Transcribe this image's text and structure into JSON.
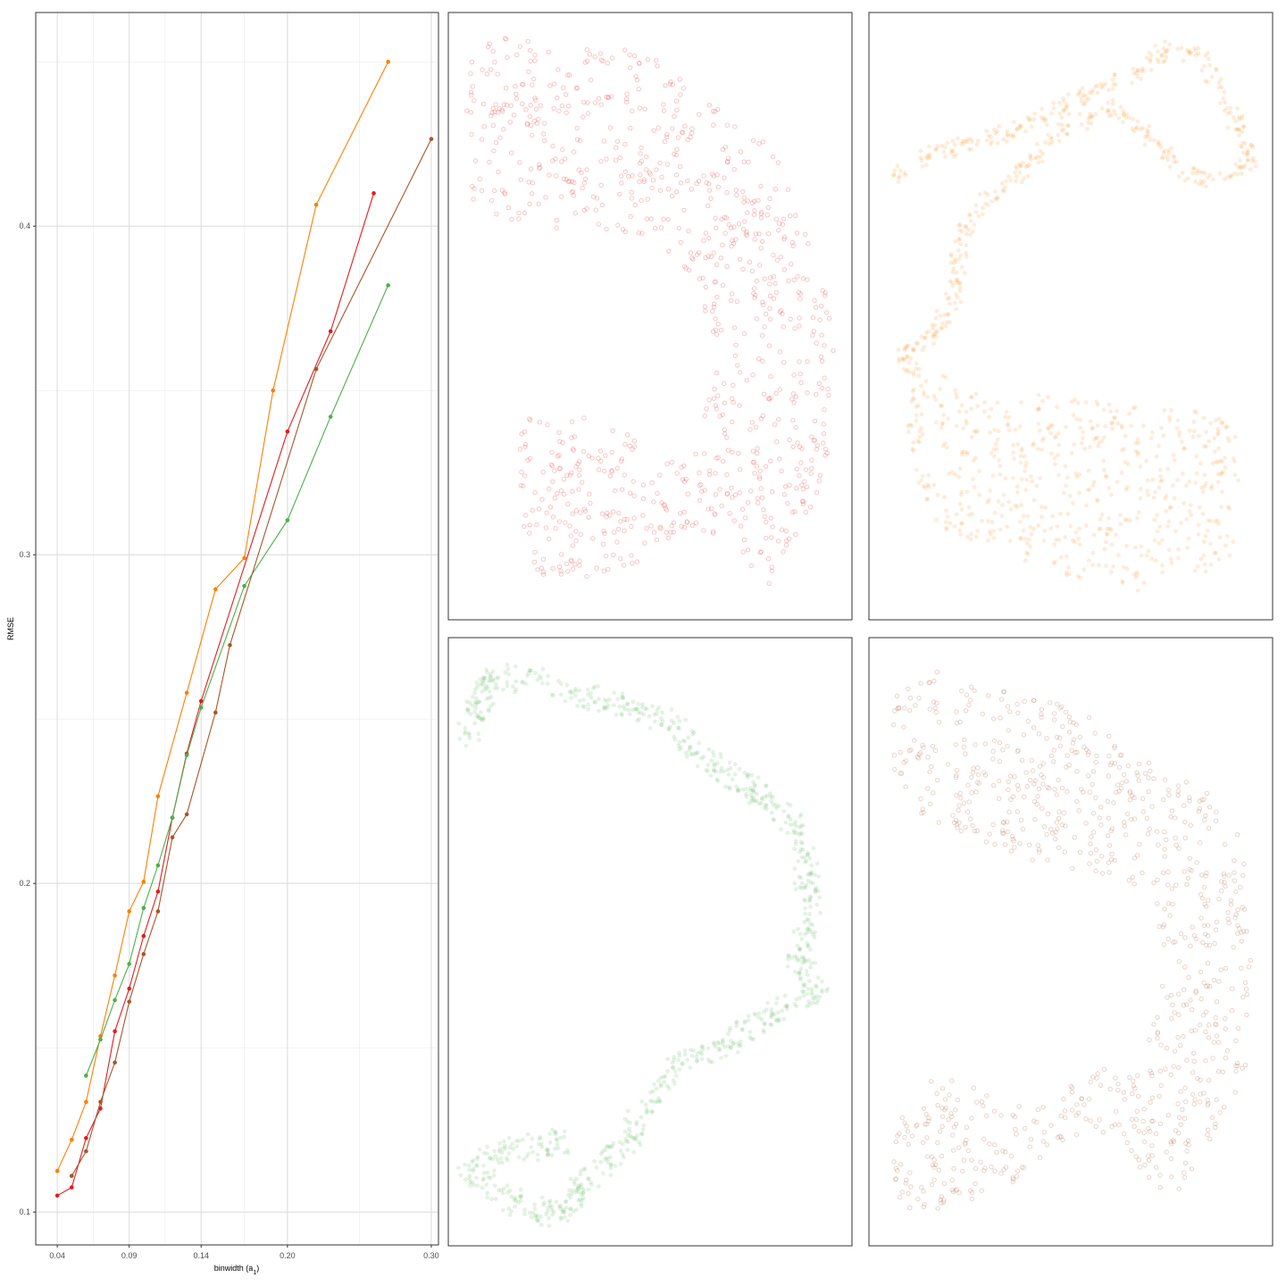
{
  "chart_data": [
    {
      "type": "line",
      "xlabel": "binwidth (a",
      "xlabel_sub": "1",
      "xlabel_close": ")",
      "ylabel": "RMSE",
      "xlim": [
        0.025,
        0.305
      ],
      "ylim": [
        0.09,
        0.465
      ],
      "x_ticks": [
        0.04,
        0.09,
        0.14,
        0.2,
        0.3
      ],
      "x_tick_labels": [
        "0.04",
        "0.09",
        "0.14",
        "0.20",
        "0.30"
      ],
      "x_minor": [
        0.065,
        0.115,
        0.17,
        0.25
      ],
      "y_ticks": [
        0.1,
        0.2,
        0.3,
        0.4
      ],
      "y_tick_labels": [
        "0.1",
        "0.2",
        "0.3",
        "0.4"
      ],
      "y_minor": [
        0.15,
        0.25,
        0.35,
        0.45
      ],
      "grid": true,
      "series": [
        {
          "color": "#ff7f00",
          "points": [
            [
              0.04,
              0.1125
            ],
            [
              0.05,
              0.122
            ],
            [
              0.06,
              0.1335
            ],
            [
              0.07,
              0.1535
            ],
            [
              0.08,
              0.172
            ],
            [
              0.09,
              0.1915
            ],
            [
              0.1,
              0.2005
            ],
            [
              0.11,
              0.2265
            ],
            [
              0.13,
              0.258
            ],
            [
              0.15,
              0.2895
            ],
            [
              0.17,
              0.299
            ],
            [
              0.19,
              0.35
            ],
            [
              0.22,
              0.4065
            ],
            [
              0.27,
              0.45
            ]
          ]
        },
        {
          "color": "#e41a1c",
          "points": [
            [
              0.04,
              0.105
            ],
            [
              0.05,
              0.1075
            ],
            [
              0.06,
              0.1225
            ],
            [
              0.07,
              0.1315
            ],
            [
              0.08,
              0.155
            ],
            [
              0.09,
              0.168
            ],
            [
              0.1,
              0.184
            ],
            [
              0.11,
              0.1975
            ],
            [
              0.12,
              0.22
            ],
            [
              0.13,
              0.2395
            ],
            [
              0.14,
              0.2555
            ],
            [
              0.2,
              0.3375
            ],
            [
              0.23,
              0.368
            ],
            [
              0.26,
              0.41
            ]
          ]
        },
        {
          "color": "#4daf4a",
          "points": [
            [
              0.06,
              0.1415
            ],
            [
              0.07,
              0.1525
            ],
            [
              0.08,
              0.1645
            ],
            [
              0.09,
              0.1755
            ],
            [
              0.1,
              0.1925
            ],
            [
              0.11,
              0.2055
            ],
            [
              0.12,
              0.22
            ],
            [
              0.13,
              0.239
            ],
            [
              0.14,
              0.2535
            ],
            [
              0.17,
              0.2905
            ],
            [
              0.2,
              0.3105
            ],
            [
              0.23,
              0.342
            ],
            [
              0.27,
              0.382
            ]
          ]
        },
        {
          "color": "#a65628",
          "points": [
            [
              0.05,
              0.111
            ],
            [
              0.06,
              0.1185
            ],
            [
              0.07,
              0.1335
            ],
            [
              0.08,
              0.1455
            ],
            [
              0.09,
              0.164
            ],
            [
              0.1,
              0.1785
            ],
            [
              0.11,
              0.1915
            ],
            [
              0.12,
              0.214
            ],
            [
              0.13,
              0.221
            ],
            [
              0.15,
              0.252
            ],
            [
              0.16,
              0.2725
            ],
            [
              0.22,
              0.3565
            ],
            [
              0.3,
              0.4265
            ]
          ]
        }
      ]
    },
    {
      "type": "scatter",
      "color": "#e41a1c",
      "style": "hollow",
      "opacity": 0.25
    },
    {
      "type": "scatter",
      "color": "#ff7f00",
      "style": "filled",
      "opacity": 0.15
    },
    {
      "type": "scatter",
      "color": "#4daf4a",
      "style": "filled",
      "opacity": 0.15
    },
    {
      "type": "scatter",
      "color": "#a65628",
      "style": "hollow",
      "opacity": 0.25
    }
  ]
}
